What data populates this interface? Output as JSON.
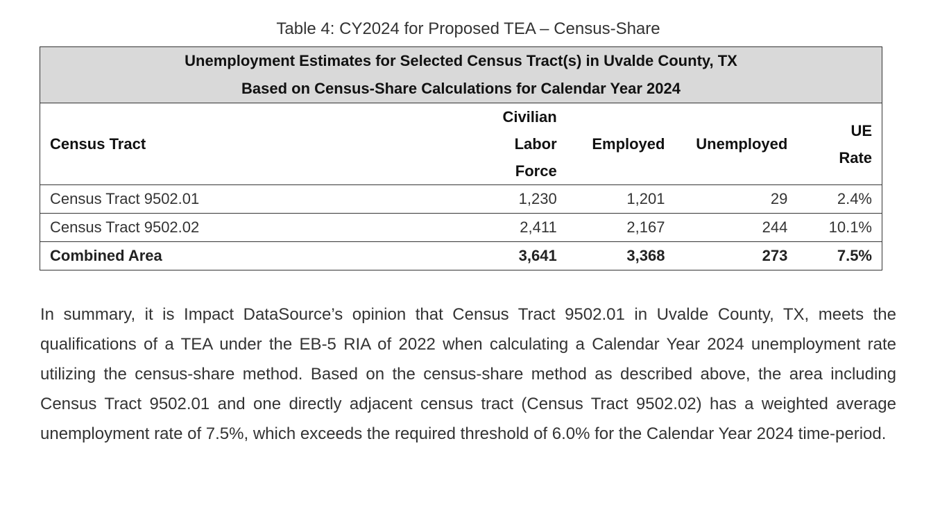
{
  "caption": "Table 4: CY2024 for Proposed TEA – Census-Share",
  "table": {
    "title_line1": "Unemployment Estimates for Selected Census Tract(s) in Uvalde County, TX",
    "title_line2": "Based on Census-Share Calculations for Calendar Year 2024",
    "columns": [
      "Census Tract",
      "Civilian Labor Force",
      "Employed",
      "Unemployed",
      "UE Rate"
    ],
    "rows": [
      [
        "Census Tract 9502.01",
        "1,230",
        "1,201",
        "29",
        "2.4%"
      ],
      [
        "Census Tract 9502.02",
        "2,411",
        "2,167",
        "244",
        "10.1%"
      ]
    ],
    "total": [
      "Combined Area",
      "3,641",
      "3,368",
      "273",
      "7.5%"
    ]
  },
  "summary": "In summary, it is Impact DataSource’s opinion that Census Tract 9502.01 in Uvalde County, TX, meets the qualifications of a TEA under the EB-5 RIA of 2022 when calculating a Calendar Year 2024 unemployment rate utilizing the census-share method. Based on the census-share method as described above, the area including Census Tract 9502.01 and one directly adjacent census tract (Census Tract 9502.02) has a weighted average unemployment rate of 7.5%, which exceeds the required threshold of 6.0% for the Calendar Year 2024 time-period."
}
